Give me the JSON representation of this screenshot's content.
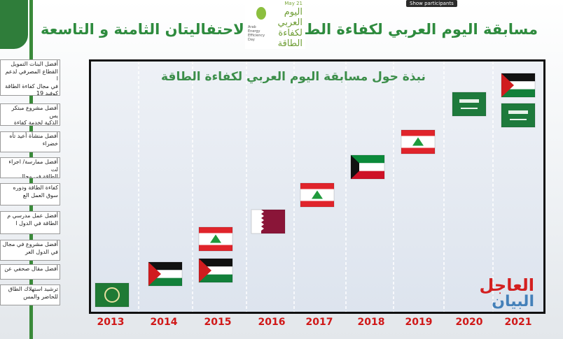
{
  "header": {
    "title": "مسابقة اليوم العربي لكفاءة الطاقة",
    "subtitle": "الاحتفاليتان الثامنة و التاسعة"
  },
  "logo": {
    "date": "May 21",
    "arabic": "اليوم العربي لكفاءة الطاقة",
    "english": "Arab Energy Efficiency Day"
  },
  "tooltip": "Show participants",
  "panel": {
    "title": "نبذة حول مسابقة اليوم العربي لكفاءة الطاقة",
    "years": [
      "2013",
      "2014",
      "2015",
      "2016",
      "2017",
      "2018",
      "2019",
      "2020",
      "2021"
    ]
  },
  "sidebar": [
    "أفضل البنات التمويل\nالقطاع المصرفي لدعم ا\nفي مجال كفاءة الطاقة\nكوفيد 19",
    "أفضل مشروع مبتكر يس\nالذكية لخدمة كفاءة",
    "أفضل منشأة أعيد تأه\nخضراء",
    "أفضل ممارسة/ اجراء لت\nالطاقة في مجال التكييف",
    "كفاءة الطاقة ودوره\nسوق العمل الع",
    "أفضل عمل مدرسي م\nالطاقة في الدول ا",
    "أفضل مشروع في مجال\nفي الدول العر",
    "أفضل مقال صحفي عن",
    "ترشيد استهلاك الطاق\nللحاضر والمس"
  ],
  "watermark": {
    "line1": "العاجل",
    "line2": "البيان"
  }
}
